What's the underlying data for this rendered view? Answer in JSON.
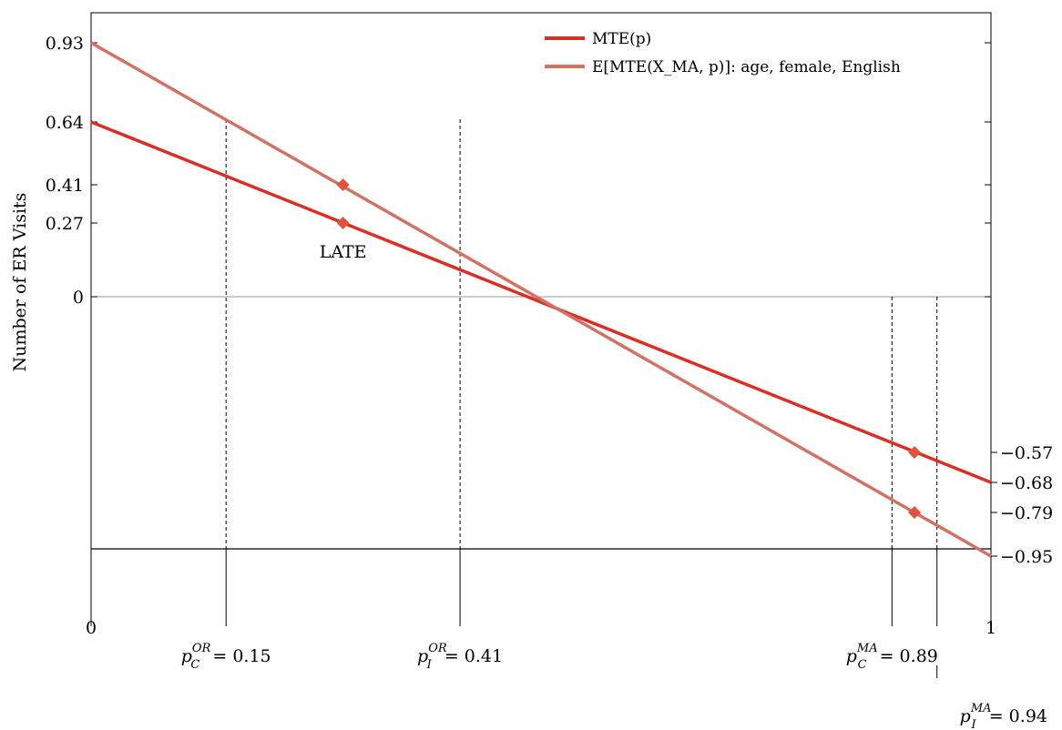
{
  "chart_data": {
    "type": "line",
    "ylabel": "Number of ER Visits",
    "xlim": [
      0,
      1
    ],
    "ylim": [
      -1.2,
      1.2
    ],
    "colors": {
      "mte": "#d73027",
      "conditional": "#d07264",
      "marker": "#e0533c"
    },
    "legend_position": "top-right",
    "series": [
      {
        "name": "MTE(p)",
        "key": "mte",
        "x": [
          0,
          1
        ],
        "y": [
          0.64,
          -0.68
        ]
      },
      {
        "name": "E[MTE(X_MA, p)]: age, female, English",
        "key": "conditional",
        "x": [
          0,
          1
        ],
        "y": [
          0.93,
          -0.95
        ]
      }
    ],
    "legend": [
      {
        "series": "mte",
        "text": "MTE(p)"
      },
      {
        "series": "conditional",
        "text": "E[MTE(X_MA, p)]: age, female, English"
      }
    ],
    "markers": [
      {
        "series": "mte",
        "x": 0.28,
        "y": 0.27,
        "label": "LATE"
      },
      {
        "series": "conditional",
        "x": 0.28,
        "y": 0.41
      },
      {
        "series": "mte",
        "x": 0.915,
        "y": -0.57
      },
      {
        "series": "conditional",
        "x": 0.915,
        "y": -0.79
      }
    ],
    "left_yticks": [
      {
        "value": 0.93,
        "label": "0.93"
      },
      {
        "value": 0.64,
        "label": "0.64"
      },
      {
        "value": 0.41,
        "label": "0.41"
      },
      {
        "value": 0.27,
        "label": "0.27"
      },
      {
        "value": 0,
        "label": "0"
      }
    ],
    "right_yticks": [
      {
        "value": -0.57,
        "label": "−0.57"
      },
      {
        "value": -0.68,
        "label": "−0.68"
      },
      {
        "value": -0.79,
        "label": "−0.79"
      },
      {
        "value": -0.95,
        "label": "−0.95"
      }
    ],
    "x_endpoints": [
      {
        "value": 0,
        "label": "0"
      },
      {
        "value": 1,
        "label": "1"
      }
    ],
    "vlines": [
      {
        "value": 0.15,
        "sym": "p",
        "sub": "C",
        "sup": "OR",
        "label": " = 0.15",
        "row": 1
      },
      {
        "value": 0.41,
        "sym": "p",
        "sub": "I",
        "sup": "OR",
        "label": " = 0.41",
        "row": 1
      },
      {
        "value": 0.89,
        "sym": "p",
        "sub": "C",
        "sup": "MA",
        "label": " = 0.89",
        "row": 1
      },
      {
        "value": 0.94,
        "sym": "p",
        "sub": "I",
        "sup": "MA",
        "label": " = 0.94",
        "row": 2
      }
    ]
  }
}
